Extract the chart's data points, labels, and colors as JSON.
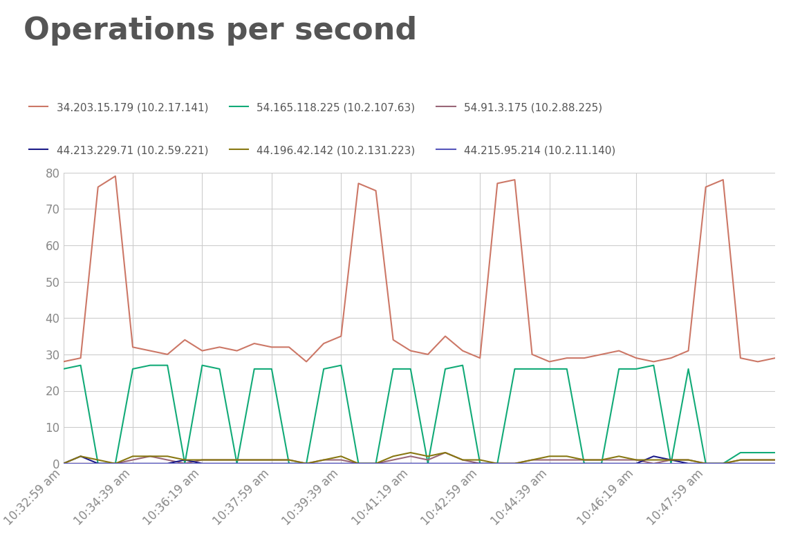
{
  "title": "Operations per second",
  "title_fontsize": 32,
  "title_color": "#555555",
  "background_color": "#ffffff",
  "plot_bg_color": "#ffffff",
  "grid_color": "#cccccc",
  "ylim": [
    0,
    80
  ],
  "yticks": [
    0,
    10,
    20,
    30,
    40,
    50,
    60,
    70,
    80
  ],
  "series": [
    {
      "label": "34.203.15.179 (10.2.17.141)",
      "color": "#cc7766",
      "linewidth": 1.5,
      "y": [
        28,
        29,
        76,
        79,
        32,
        31,
        30,
        34,
        31,
        32,
        31,
        33,
        32,
        32,
        28,
        33,
        35,
        77,
        75,
        34,
        31,
        30,
        35,
        31,
        29,
        77,
        78,
        30,
        28,
        29,
        29,
        30,
        31,
        29,
        28,
        29,
        31,
        76,
        78,
        29,
        28,
        29
      ]
    },
    {
      "label": "54.165.118.225 (10.2.107.63)",
      "color": "#11aa77",
      "linewidth": 1.5,
      "y": [
        26,
        27,
        0,
        0,
        26,
        27,
        27,
        0,
        27,
        26,
        0,
        26,
        26,
        0,
        0,
        26,
        27,
        0,
        0,
        26,
        26,
        0,
        26,
        27,
        0,
        0,
        26,
        26,
        26,
        26,
        0,
        0,
        26,
        26,
        27,
        0,
        26,
        0,
        0,
        3,
        3,
        3
      ]
    },
    {
      "label": "54.91.3.175 (10.2.88.225)",
      "color": "#996677",
      "linewidth": 1.5,
      "y": [
        0,
        0,
        0,
        0,
        1,
        2,
        1,
        0,
        1,
        1,
        1,
        1,
        1,
        1,
        0,
        1,
        1,
        0,
        0,
        1,
        2,
        1,
        3,
        1,
        0,
        0,
        0,
        1,
        1,
        1,
        1,
        1,
        1,
        1,
        0,
        1,
        1,
        0,
        0,
        1,
        1,
        1
      ]
    },
    {
      "label": "44.213.229.71 (10.2.59.221)",
      "color": "#1a1a88",
      "linewidth": 1.5,
      "y": [
        0,
        2,
        0,
        0,
        0,
        0,
        0,
        1,
        0,
        0,
        0,
        0,
        0,
        0,
        0,
        0,
        0,
        0,
        0,
        0,
        0,
        0,
        0,
        0,
        0,
        0,
        0,
        0,
        0,
        0,
        0,
        0,
        0,
        0,
        2,
        1,
        0,
        0,
        0,
        0,
        0,
        0
      ]
    },
    {
      "label": "44.196.42.142 (10.2.131.223)",
      "color": "#887711",
      "linewidth": 1.5,
      "y": [
        0,
        2,
        1,
        0,
        2,
        2,
        2,
        1,
        1,
        1,
        1,
        1,
        1,
        1,
        0,
        1,
        2,
        0,
        0,
        2,
        3,
        2,
        3,
        1,
        1,
        0,
        0,
        1,
        2,
        2,
        1,
        1,
        2,
        1,
        1,
        1,
        1,
        0,
        0,
        1,
        1,
        1
      ]
    },
    {
      "label": "44.215.95.214 (10.2.11.140)",
      "color": "#5555bb",
      "linewidth": 1.5,
      "y": [
        0,
        0,
        0,
        0,
        0,
        0,
        0,
        0,
        0,
        0,
        0,
        0,
        0,
        0,
        0,
        0,
        0,
        0,
        0,
        0,
        0,
        0,
        0,
        0,
        0,
        0,
        0,
        0,
        0,
        0,
        0,
        0,
        0,
        0,
        0,
        0,
        0,
        0,
        0,
        0,
        0,
        0
      ]
    }
  ],
  "xtick_labels": [
    "10:32:59 am",
    "10:34:39 am",
    "10:36:19 am",
    "10:37:59 am",
    "10:39:39 am",
    "10:41:19 am",
    "10:42:59 am",
    "10:44:39 am",
    "10:46:19 am",
    "10:47:59 am"
  ],
  "xtick_positions": [
    0,
    4,
    8,
    12,
    16,
    20,
    24,
    28,
    33,
    37
  ],
  "legend_fontsize": 11,
  "tick_fontsize": 12,
  "tick_color": "#888888"
}
